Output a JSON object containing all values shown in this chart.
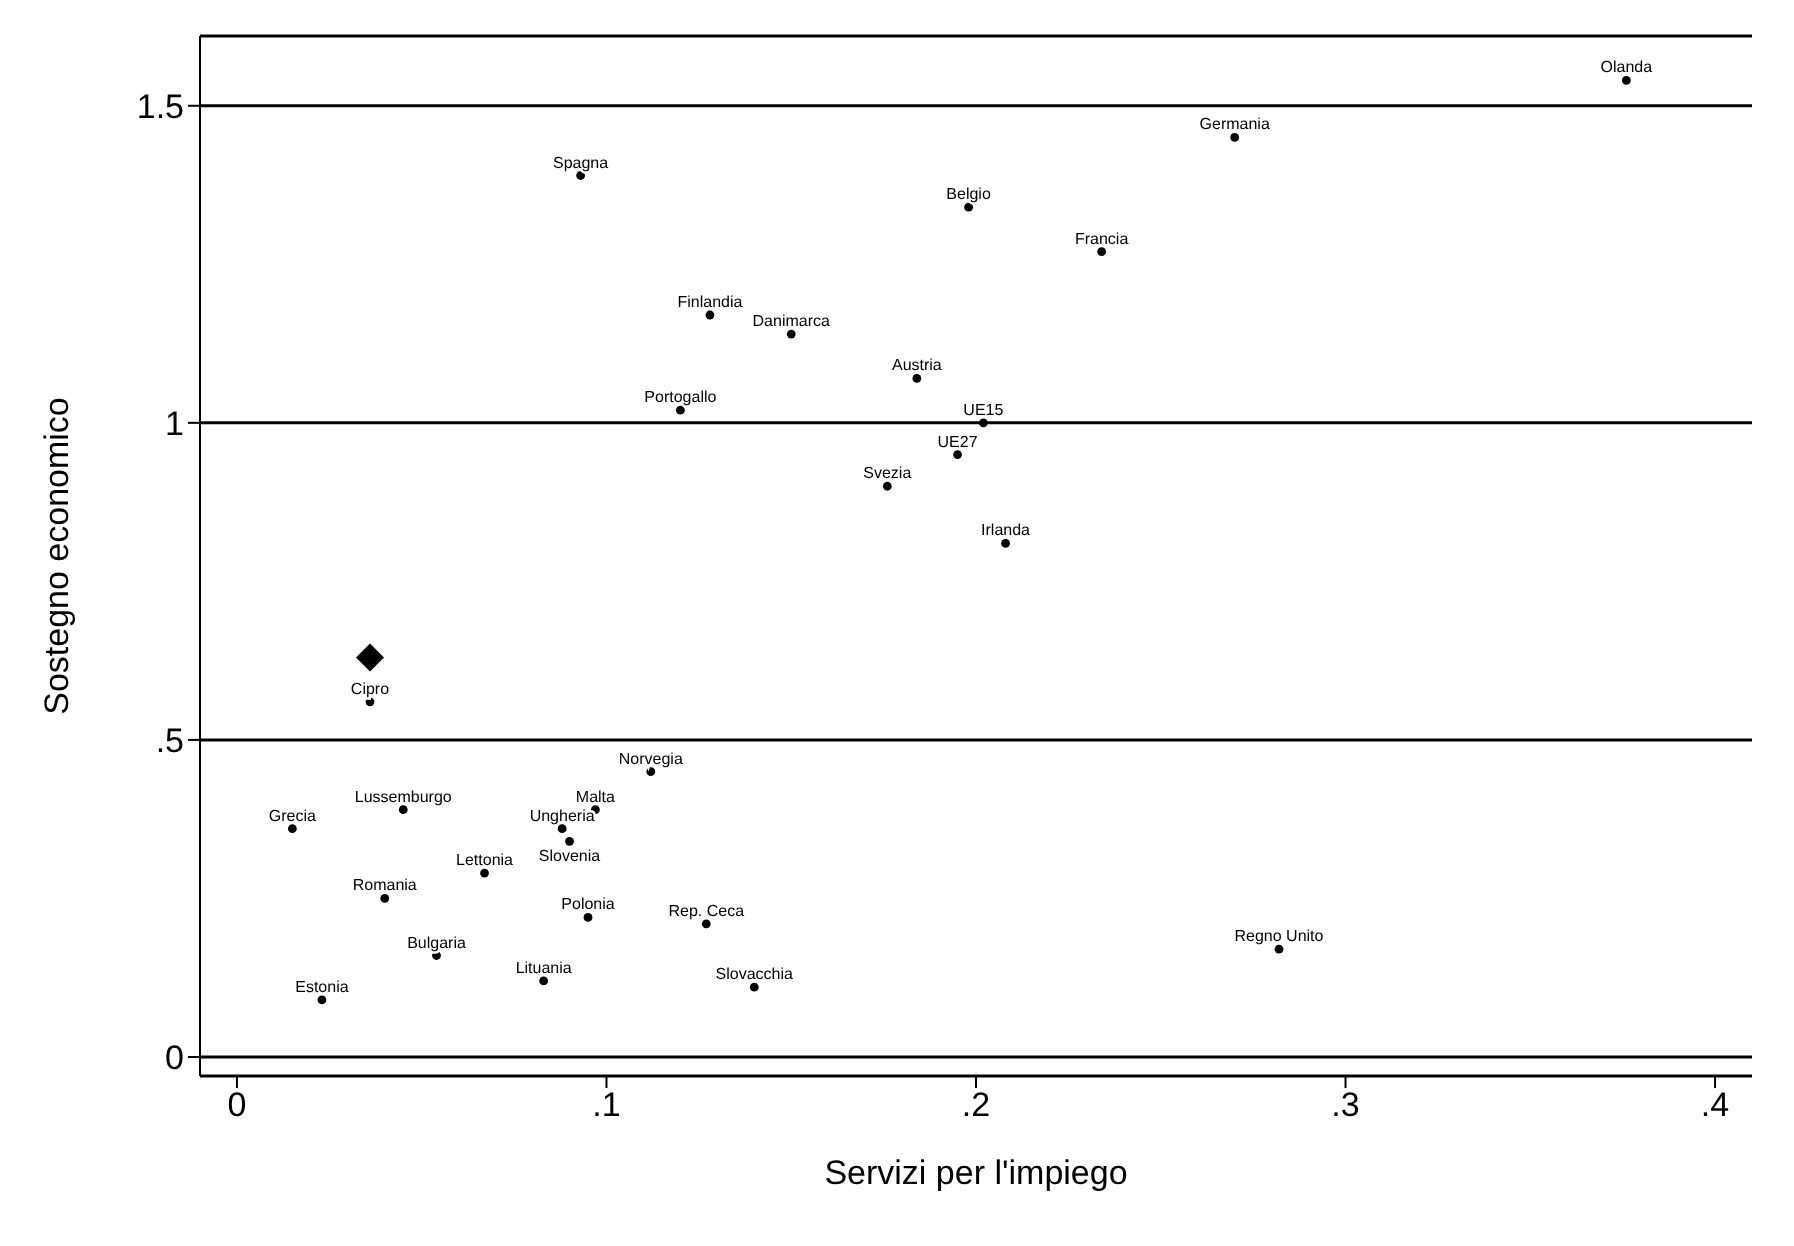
{
  "chart_data": {
    "type": "scatter",
    "xlabel": "Servizi per l'impiego",
    "ylabel": "Sostegno economico",
    "xlim": [
      -0.01,
      0.41
    ],
    "ylim": [
      -0.03,
      1.61
    ],
    "xticks": [
      0,
      {
        "value": 0.1,
        "label": ".1"
      },
      {
        "value": 0.2,
        "label": ".2"
      },
      {
        "value": 0.3,
        "label": ".3"
      },
      {
        "value": 0.4,
        "label": ".4"
      }
    ],
    "yticks": [
      0,
      {
        "value": 0.5,
        "label": ".5"
      },
      1,
      1.5
    ],
    "grid": "y",
    "legend": false,
    "series": [
      {
        "color": "#000000",
        "marker": "circle",
        "x": [
          0.376,
          0.27,
          0.093,
          0.198,
          0.234,
          0.128,
          0.15,
          0.184,
          0.12,
          0.202,
          0.195,
          0.176,
          0.208,
          0.036,
          0.112,
          0.045,
          0.015,
          0.097,
          0.088,
          0.09,
          0.067,
          0.04,
          0.095,
          0.127,
          0.054,
          0.282,
          0.083,
          0.14,
          0.023
        ],
        "values": [
          1.54,
          1.45,
          1.39,
          1.34,
          1.27,
          1.17,
          1.14,
          1.07,
          1.02,
          1.0,
          0.95,
          0.9,
          0.81,
          0.56,
          0.45,
          0.39,
          0.36,
          0.39,
          0.36,
          0.34,
          0.29,
          0.25,
          0.22,
          0.21,
          0.16,
          0.17,
          0.12,
          0.11,
          0.09
        ],
        "value_labels": [
          "Olanda",
          "Germania",
          "Spagna",
          "Belgio",
          "Francia",
          "Finlandia",
          "Danimarca",
          "Austria",
          "Portogallo",
          "UE15",
          "UE27",
          "Svezia",
          "Irlanda",
          "Cipro",
          "Norvegia",
          "Lussemburgo",
          "Grecia",
          "Malta",
          "Ungheria",
          "Slovenia",
          "Lettonia",
          "Romania",
          "Polonia",
          "Rep. Ceca",
          "Bulgaria",
          "Regno Unito",
          "Lituania",
          "Slovacchia",
          "Estonia"
        ]
      },
      {
        "color": "#000000",
        "marker": "diamond",
        "x": [
          0.036
        ],
        "values": [
          0.63
        ]
      }
    ]
  }
}
